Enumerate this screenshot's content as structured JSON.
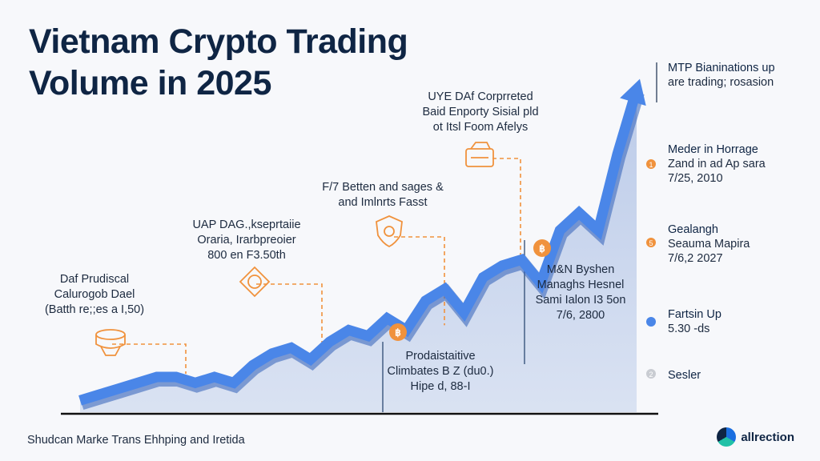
{
  "title": {
    "line1": "Vietnam Crypto Trading",
    "line2": "Volume in 2025"
  },
  "footer": {
    "text": "Shudcan Marke Trans Ehhping and Iretida"
  },
  "brand": {
    "name": "allrection"
  },
  "colors": {
    "accent": "#4a86e8",
    "fill": "#c9d6ee",
    "annotation": "#f0923d",
    "dark": "#0f2544",
    "axis": "#111111"
  },
  "annotations": [
    {
      "name": "annotation-1",
      "icon": "coin-stack-icon",
      "lines": [
        "Daf Prudiscal",
        "Calurogob Dael",
        "(Batth re;;es a I,50)"
      ]
    },
    {
      "name": "annotation-2",
      "icon": "diamond-coin-icon",
      "lines": [
        "UAP DAG.,kseprtaiie",
        "Oraria, Irarbpreoier",
        "800 en F3.50th"
      ]
    },
    {
      "name": "annotation-3",
      "icon": "shield-icon",
      "lines": [
        "F/7 Betten and sages &",
        "and Imlnrts Fasst"
      ]
    },
    {
      "name": "annotation-4",
      "icon": "wallet-icon",
      "lines": [
        "UYE DAf Corprreted",
        "Baid Enporty Sisial pld",
        "ot Itsl Foom Afelys"
      ]
    },
    {
      "name": "annotation-5",
      "icon": "bitcoin-icon",
      "lines": [
        "Prodaistaitive",
        "Climbates B Z (du0.)",
        "Hipe d, 88-I"
      ]
    },
    {
      "name": "annotation-6",
      "icon": "bitcoin-icon",
      "lines": [
        "M&N Byshen",
        "Managhs Hesnel",
        "Sami Ialon I3 5on",
        "7/6, 2800"
      ]
    }
  ],
  "timeline": [
    {
      "marker": "",
      "head": "MTP Bianinations up",
      "sub": [
        "are trading; rosasion"
      ]
    },
    {
      "marker": "1",
      "head": "Meder in Horrage",
      "sub": [
        "Zand in ad Ap sara",
        "7/25, 2010"
      ]
    },
    {
      "marker": "5",
      "head": "Gealangh",
      "sub": [
        "Seauma Mapira",
        "7/6,2 2027"
      ]
    },
    {
      "marker": "",
      "head": "Fartsin Up",
      "sub": [
        "5.30 -ds"
      ]
    },
    {
      "marker": "2",
      "head": "Sesler",
      "sub": []
    }
  ],
  "chart_data": {
    "type": "area",
    "title": "Vietnam Crypto Trading Volume in 2025",
    "xlabel": "",
    "ylabel": "",
    "x": [
      0,
      1,
      2,
      3,
      4,
      5,
      6,
      7,
      8,
      9,
      10,
      11,
      12,
      13,
      14,
      15,
      16,
      17,
      18,
      19,
      20,
      21,
      22,
      23,
      24,
      25,
      26,
      27,
      28,
      29
    ],
    "values": [
      2,
      3,
      4,
      5,
      6,
      6,
      5,
      6,
      5,
      8,
      10,
      11,
      9,
      12,
      14,
      13,
      16,
      14,
      19,
      21,
      17,
      23,
      25,
      26,
      22,
      31,
      34,
      31,
      44,
      55
    ],
    "ylim": [
      0,
      58
    ],
    "grid": false,
    "legend": "none"
  }
}
